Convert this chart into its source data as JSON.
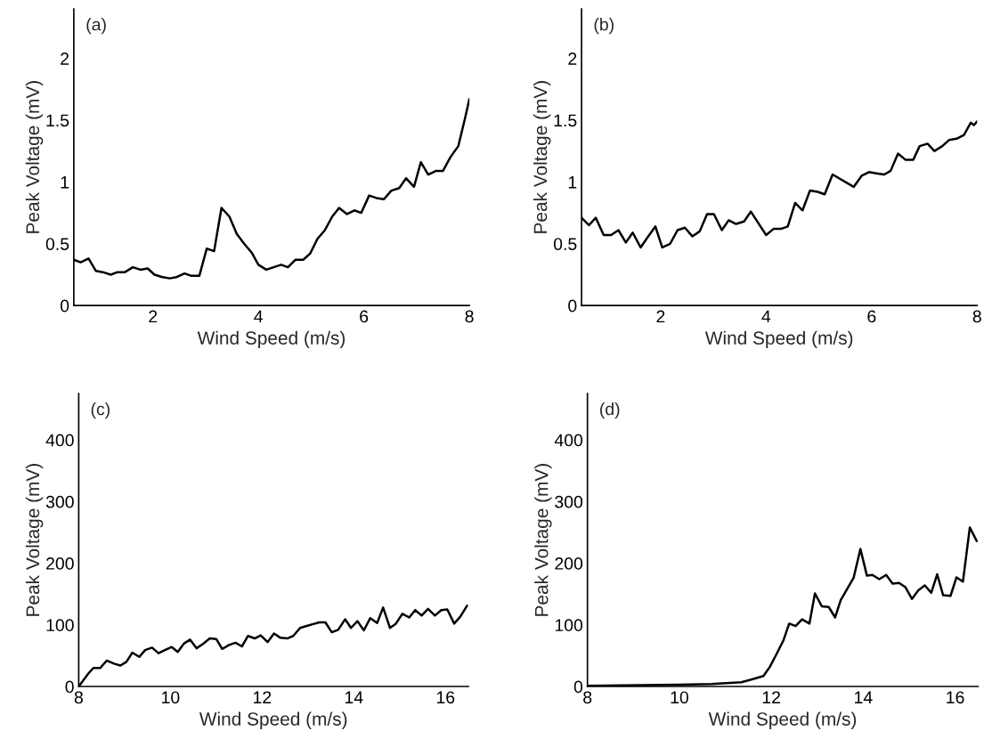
{
  "chart_data": [
    {
      "type": "line",
      "annotations": [
        "(a)"
      ],
      "xlabel": "Wind Speed (m/s)",
      "ylabel": "Peak Voltage (mV)",
      "color": "#000000",
      "grid": false,
      "xlim": [
        0.5,
        8
      ],
      "ylim": [
        0,
        2.4
      ],
      "xticks": [
        2,
        4,
        6,
        8
      ],
      "yticks": [
        0,
        0.5,
        1,
        1.5,
        2
      ],
      "x": [
        0.5,
        0.63,
        0.78,
        0.92,
        1.05,
        1.2,
        1.33,
        1.47,
        1.62,
        1.76,
        1.9,
        2.03,
        2.18,
        2.32,
        2.45,
        2.6,
        2.73,
        2.88,
        3.02,
        3.16,
        3.3,
        3.45,
        3.59,
        3.73,
        3.87,
        4.0,
        4.15,
        4.29,
        4.43,
        4.56,
        4.7,
        4.85,
        4.98,
        5.12,
        5.26,
        5.4,
        5.53,
        5.68,
        5.82,
        5.95,
        6.1,
        6.24,
        6.38,
        6.52,
        6.67,
        6.8,
        6.95,
        7.08,
        7.22,
        7.37,
        7.5,
        7.64,
        7.79,
        7.92,
        8.0
      ],
      "values": [
        0.37,
        0.35,
        0.38,
        0.28,
        0.27,
        0.25,
        0.27,
        0.27,
        0.31,
        0.29,
        0.3,
        0.25,
        0.23,
        0.22,
        0.23,
        0.26,
        0.24,
        0.24,
        0.46,
        0.44,
        0.79,
        0.72,
        0.58,
        0.5,
        0.43,
        0.33,
        0.29,
        0.31,
        0.33,
        0.31,
        0.37,
        0.37,
        0.42,
        0.54,
        0.61,
        0.72,
        0.79,
        0.74,
        0.77,
        0.75,
        0.89,
        0.87,
        0.86,
        0.93,
        0.95,
        1.03,
        0.96,
        1.16,
        1.06,
        1.09,
        1.09,
        1.2,
        1.29,
        1.52,
        1.67
      ]
    },
    {
      "type": "line",
      "annotations": [
        "(b)"
      ],
      "xlabel": "Wind Speed (m/s)",
      "ylabel": "Peak Voltage (mV)",
      "color": "#000000",
      "grid": false,
      "xlim": [
        0.5,
        8
      ],
      "ylim": [
        0,
        2.4
      ],
      "xticks": [
        2,
        4,
        6,
        8
      ],
      "yticks": [
        0,
        0.5,
        1,
        1.5,
        2
      ],
      "x": [
        0.5,
        0.64,
        0.77,
        0.92,
        1.06,
        1.2,
        1.34,
        1.47,
        1.62,
        1.75,
        1.9,
        2.03,
        2.18,
        2.32,
        2.46,
        2.6,
        2.74,
        2.88,
        3.01,
        3.16,
        3.29,
        3.43,
        3.58,
        3.71,
        4.0,
        4.14,
        4.28,
        4.41,
        4.55,
        4.69,
        4.83,
        4.98,
        5.11,
        5.26,
        5.66,
        5.81,
        5.95,
        6.09,
        6.24,
        6.36,
        6.5,
        6.64,
        6.79,
        6.91,
        7.06,
        7.19,
        7.34,
        7.47,
        7.61,
        7.75,
        7.88,
        7.94,
        8.0
      ],
      "values": [
        0.71,
        0.65,
        0.71,
        0.57,
        0.57,
        0.61,
        0.51,
        0.59,
        0.47,
        0.55,
        0.64,
        0.47,
        0.5,
        0.61,
        0.63,
        0.56,
        0.6,
        0.74,
        0.74,
        0.61,
        0.69,
        0.66,
        0.68,
        0.76,
        0.57,
        0.62,
        0.62,
        0.64,
        0.83,
        0.77,
        0.93,
        0.92,
        0.9,
        1.06,
        0.96,
        1.05,
        1.08,
        1.07,
        1.06,
        1.09,
        1.23,
        1.18,
        1.18,
        1.29,
        1.31,
        1.25,
        1.29,
        1.34,
        1.35,
        1.38,
        1.48,
        1.46,
        1.49
      ]
    },
    {
      "type": "line",
      "annotations": [
        "(c)"
      ],
      "xlabel": "Wind Speed (m/s)",
      "ylabel": "Peak Voltage (mV)",
      "color": "#000000",
      "grid": false,
      "xlim": [
        8,
        16.5
      ],
      "ylim": [
        0,
        475
      ],
      "xticks": [
        8,
        10,
        12,
        14,
        16
      ],
      "yticks": [
        0,
        100,
        200,
        300,
        400
      ],
      "x": [
        8,
        8.21,
        8.32,
        8.47,
        8.61,
        8.77,
        8.91,
        9.04,
        9.17,
        9.32,
        9.45,
        9.6,
        9.74,
        9.88,
        10.03,
        10.16,
        10.3,
        10.43,
        10.57,
        10.71,
        10.86,
        11.0,
        11.13,
        11.27,
        11.42,
        11.56,
        11.69,
        11.84,
        11.97,
        12.12,
        12.26,
        12.4,
        12.55,
        12.68,
        12.83,
        12.96,
        13.1,
        13.25,
        13.38,
        13.52,
        13.66,
        13.81,
        13.94,
        14.08,
        14.22,
        14.36,
        14.51,
        14.64,
        14.79,
        14.92,
        15.06,
        15.21,
        15.34,
        15.48,
        15.62,
        15.77,
        15.91,
        16.04,
        16.19,
        16.32,
        16.47
      ],
      "values": [
        0,
        21,
        30,
        30,
        42,
        37,
        34,
        40,
        55,
        48,
        59,
        63,
        54,
        59,
        64,
        56,
        70,
        76,
        62,
        69,
        78,
        77,
        61,
        67,
        71,
        65,
        82,
        78,
        83,
        72,
        86,
        79,
        78,
        82,
        95,
        98,
        101,
        104,
        104,
        88,
        92,
        109,
        95,
        106,
        91,
        111,
        103,
        128,
        95,
        102,
        118,
        112,
        124,
        115,
        126,
        115,
        124,
        125,
        102,
        113,
        131
      ]
    },
    {
      "type": "line",
      "annotations": [
        "(d)"
      ],
      "xlabel": "Wind Speed (m/s)",
      "ylabel": "Peak Voltage (mV)",
      "color": "#000000",
      "grid": false,
      "xlim": [
        8,
        16.5
      ],
      "ylim": [
        0,
        475
      ],
      "xticks": [
        8,
        10,
        12,
        14,
        16
      ],
      "yticks": [
        0,
        100,
        200,
        300,
        400
      ],
      "x": [
        8,
        10,
        10.7,
        11.35,
        11.6,
        11.83,
        11.97,
        12.11,
        12.26,
        12.39,
        12.53,
        12.67,
        12.83,
        12.95,
        13.1,
        13.25,
        13.39,
        13.51,
        13.65,
        13.79,
        13.94,
        14.08,
        14.2,
        14.35,
        14.5,
        14.64,
        14.78,
        14.92,
        15.06,
        15.2,
        15.34,
        15.48,
        15.61,
        15.74,
        15.9,
        16.03,
        16.17,
        16.32,
        16.47
      ],
      "values": [
        1,
        3,
        4,
        7,
        12,
        17,
        32,
        52,
        74,
        102,
        98,
        109,
        102,
        151,
        130,
        129,
        112,
        140,
        158,
        176,
        223,
        180,
        181,
        174,
        181,
        167,
        168,
        161,
        142,
        156,
        164,
        152,
        182,
        148,
        147,
        177,
        170,
        258,
        236
      ]
    }
  ]
}
